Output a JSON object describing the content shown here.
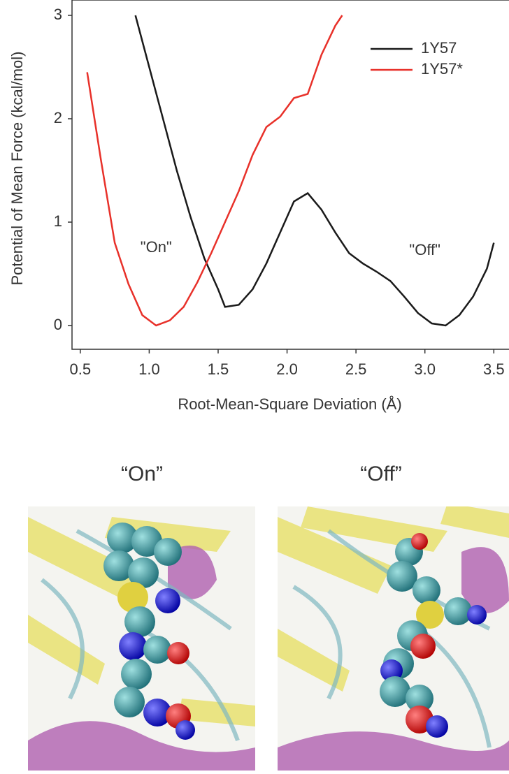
{
  "chart_data": {
    "type": "line",
    "y_label": "Potential of Mean Force (kcal/mol)",
    "x_label": "Root-Mean-Square Deviation (Å)",
    "xlim": [
      0.44,
      3.6
    ],
    "ylim": [
      -0.23,
      3.0
    ],
    "xticks": [
      0.5,
      {
        "value": 1.0,
        "label": "1.0"
      },
      1.5,
      {
        "value": 2.0,
        "label": "2.0"
      },
      2.5,
      {
        "value": 3.0,
        "label": "3.0"
      },
      3.5
    ],
    "yticks": [
      0,
      1,
      2,
      3
    ],
    "legend": "upper right",
    "annotations": [
      {
        "text": "\"On\"",
        "x": 1.05,
        "y": 0.75
      },
      {
        "text": "\"Off\"",
        "x": 3.0,
        "y": 0.72
      }
    ],
    "series": [
      {
        "name": "1Y57",
        "color": "#1a1a1a",
        "x": [
          0.9,
          1.0,
          1.1,
          1.2,
          1.3,
          1.4,
          1.5,
          1.55,
          1.65,
          1.75,
          1.85,
          1.95,
          2.05,
          2.15,
          2.25,
          2.35,
          2.45,
          2.55,
          2.65,
          2.75,
          2.85,
          2.95,
          3.05,
          3.15,
          3.25,
          3.35,
          3.45,
          3.5
        ],
        "values": [
          3.0,
          2.5,
          2.0,
          1.5,
          1.05,
          0.65,
          0.35,
          0.18,
          0.2,
          0.35,
          0.6,
          0.9,
          1.2,
          1.28,
          1.12,
          0.9,
          0.7,
          0.6,
          0.52,
          0.43,
          0.28,
          0.12,
          0.02,
          0.0,
          0.1,
          0.28,
          0.55,
          0.8
        ]
      },
      {
        "name": "1Y57*",
        "color": "#e8312a",
        "x": [
          0.55,
          0.65,
          0.75,
          0.85,
          0.95,
          1.05,
          1.15,
          1.25,
          1.35,
          1.45,
          1.55,
          1.65,
          1.75,
          1.85,
          1.95,
          2.05,
          2.15,
          2.25,
          2.35,
          2.4
        ],
        "values": [
          2.45,
          1.6,
          0.8,
          0.4,
          0.1,
          0.0,
          0.05,
          0.18,
          0.42,
          0.7,
          1.0,
          1.3,
          1.65,
          1.92,
          2.02,
          2.2,
          2.24,
          2.62,
          2.9,
          3.0
        ]
      }
    ]
  },
  "panels": [
    "“On”",
    "“Off”"
  ]
}
